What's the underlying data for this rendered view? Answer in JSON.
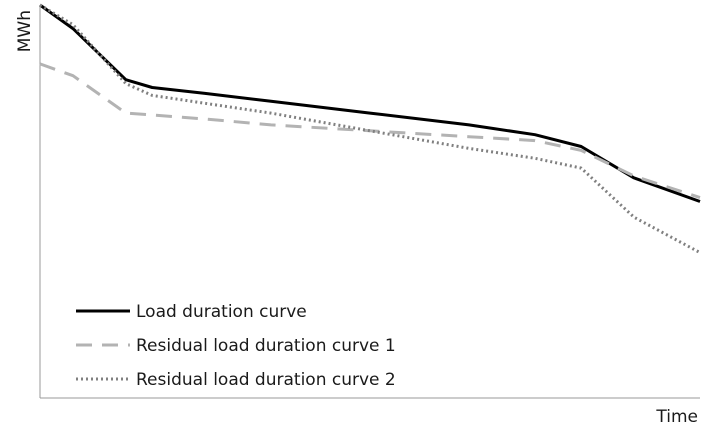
{
  "chart_data": {
    "type": "line",
    "title": "",
    "xlabel": "Time",
    "ylabel": "MWh",
    "xlim": [
      0,
      100
    ],
    "ylim": [
      0,
      100
    ],
    "grid": false,
    "legend_position": "bottom-left",
    "x": [
      0,
      5,
      13,
      17,
      25,
      35,
      50,
      65,
      75,
      82,
      90,
      100
    ],
    "series": [
      {
        "name": "Load duration curve",
        "color": "#000000",
        "dash": "solid",
        "values": [
          100,
          94,
          81,
          79,
          77.5,
          75.5,
          72.5,
          69.5,
          67,
          64,
          56,
          50
        ]
      },
      {
        "name": "Residual load duration curve 1",
        "color": "#b3b3b3",
        "dash": "dashed",
        "values": [
          85,
          82,
          72.5,
          72,
          71,
          69.5,
          68,
          66.5,
          65.5,
          63,
          56.5,
          51
        ]
      },
      {
        "name": "Residual load duration curve 2",
        "color": "#808080",
        "dash": "dotted",
        "values": [
          100,
          95,
          80,
          77,
          75,
          72.5,
          68,
          63.5,
          61,
          58.5,
          46,
          37
        ]
      }
    ]
  }
}
